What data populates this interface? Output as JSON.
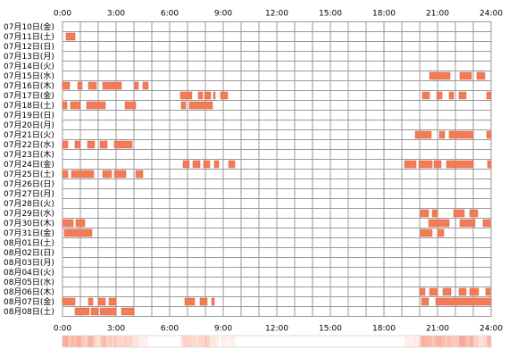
{
  "chart_data": {
    "type": "timeline",
    "categories": [
      "07月10日(金)",
      "07月11日(土)",
      "07月12日(日)",
      "07月13日(月)",
      "07月14日(火)",
      "07月15日(水)",
      "07月16日(木)",
      "07月17日(金)",
      "07月18日(土)",
      "07月19日(日)",
      "07月20日(月)",
      "07月21日(火)",
      "07月22日(水)",
      "07月23日(木)",
      "07月24日(金)",
      "07月25日(土)",
      "07月26日(日)",
      "07月27日(月)",
      "07月28日(火)",
      "07月29日(水)",
      "07月30日(木)",
      "07月31日(金)",
      "08月01日(土)",
      "08月02日(日)",
      "08月03日(月)",
      "08月04日(火)",
      "08月05日(水)",
      "08月06日(木)",
      "08月07日(金)",
      "08月08日(土)"
    ],
    "segments": [
      [],
      [
        [
          0.2,
          0.7
        ]
      ],
      [],
      [],
      [],
      [
        [
          20.55,
          21.7
        ],
        [
          22.25,
          22.9
        ],
        [
          23.2,
          23.65
        ]
      ],
      [
        [
          0,
          0.4
        ],
        [
          0.85,
          1.1
        ],
        [
          1.45,
          1.9
        ],
        [
          2.25,
          3.3
        ],
        [
          4.05,
          4.25
        ],
        [
          4.5,
          4.8
        ]
      ],
      [
        [
          6.6,
          7.25
        ],
        [
          7.6,
          7.85
        ],
        [
          7.95,
          8.3
        ],
        [
          8.45,
          8.55
        ],
        [
          8.85,
          9.25
        ],
        [
          20.15,
          20.55
        ],
        [
          20.95,
          21.25
        ],
        [
          21.65,
          21.9
        ],
        [
          22.2,
          22.6
        ],
        [
          23.75,
          24
        ]
      ],
      [
        [
          0,
          0.25
        ],
        [
          0.45,
          1
        ],
        [
          1.35,
          2.4
        ],
        [
          3.5,
          4.1
        ],
        [
          6.65,
          6.9
        ],
        [
          7.1,
          8.4
        ]
      ],
      [],
      [],
      [
        [
          19.75,
          20.65
        ],
        [
          21.1,
          21.4
        ],
        [
          21.65,
          23
        ],
        [
          23.75,
          24
        ]
      ],
      [
        [
          0,
          0.3
        ],
        [
          0.7,
          1
        ],
        [
          1.4,
          1.8
        ],
        [
          2.1,
          2.5
        ],
        [
          2.9,
          3.9
        ]
      ],
      [],
      [
        [
          6.75,
          7.1
        ],
        [
          7.3,
          7.7
        ],
        [
          7.9,
          8.25
        ],
        [
          8.5,
          8.75
        ],
        [
          9.3,
          9.65
        ],
        [
          19.15,
          19.8
        ],
        [
          19.95,
          20.7
        ],
        [
          20.8,
          21.2
        ],
        [
          21.5,
          23
        ],
        [
          23.8,
          24
        ]
      ],
      [
        [
          0,
          0.3
        ],
        [
          0.5,
          1.75
        ],
        [
          2.25,
          2.75
        ],
        [
          2.9,
          3.55
        ],
        [
          4.1,
          4.5
        ]
      ],
      [],
      [],
      [],
      [
        [
          20.05,
          20.5
        ],
        [
          20.7,
          21
        ],
        [
          21.9,
          22.5
        ],
        [
          22.8,
          23.25
        ]
      ],
      [
        [
          0,
          0.6
        ],
        [
          0.75,
          1.25
        ],
        [
          20.5,
          21.65
        ],
        [
          22.25,
          23.1
        ],
        [
          23.55,
          23.95
        ]
      ],
      [
        [
          0.1,
          1.65
        ],
        [
          20.05,
          20.7
        ],
        [
          21,
          21.35
        ]
      ],
      [],
      [],
      [],
      [],
      [],
      [
        [
          20,
          20.3
        ],
        [
          20.55,
          21
        ],
        [
          21.3,
          21.75
        ],
        [
          22.2,
          22.6
        ],
        [
          22.8,
          23.3
        ],
        [
          23.7,
          23.95
        ]
      ],
      [
        [
          0,
          0.7
        ],
        [
          1.45,
          1.7
        ],
        [
          2,
          2.4
        ],
        [
          2.6,
          3
        ],
        [
          6.85,
          7.4
        ],
        [
          7.7,
          8.1
        ],
        [
          8.35,
          8.5
        ],
        [
          20.1,
          20.5
        ],
        [
          20.9,
          24
        ]
      ],
      [
        [
          0.7,
          1.5
        ],
        [
          1.6,
          2
        ],
        [
          2.1,
          3
        ],
        [
          3.3,
          4
        ]
      ]
    ],
    "color": "#f37b57",
    "xlim": [
      0,
      24
    ],
    "xticks": [
      {
        "value": 0,
        "label": "0:00"
      },
      {
        "value": 3,
        "label": "3:00"
      },
      {
        "value": 6,
        "label": "6:00"
      },
      {
        "value": 9,
        "label": "9:00"
      },
      {
        "value": 12,
        "label": "12:00"
      },
      {
        "value": 15,
        "label": "15:00"
      },
      {
        "value": 18,
        "label": "18:00"
      },
      {
        "value": 21,
        "label": "21:00"
      },
      {
        "value": 24,
        "label": "24:00"
      }
    ],
    "grid": true
  }
}
